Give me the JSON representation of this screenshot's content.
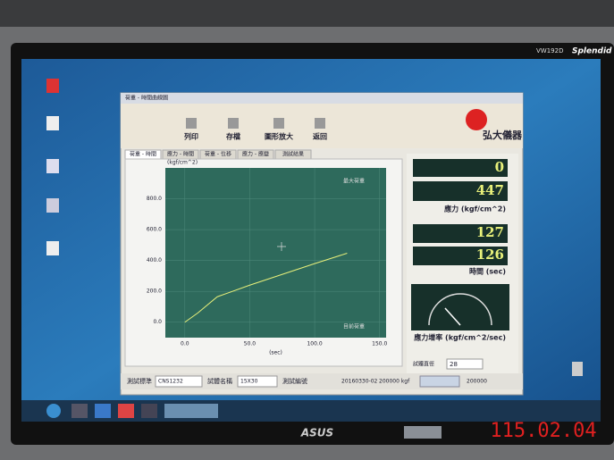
{
  "monitor": {
    "model": "VW192D",
    "series": "Splendid",
    "brand": "ASUS"
  },
  "stamp": "115.02.04",
  "app": {
    "title": "荷重 - 時間曲線圖",
    "toolbar": [
      "列印",
      "存檔",
      "圖形放大",
      "返回"
    ],
    "company": "弘大儀器",
    "tabs": [
      "荷重 - 時間",
      "應力 - 時間",
      "荷重 - 位移",
      "應力 - 應變",
      "測試結果"
    ],
    "panels": {
      "load": "0",
      "stress": "447",
      "stress_label": "應力 (kgf/cm^2)",
      "time_a": "127",
      "time_b": "126",
      "time_label": "時間 (sec)",
      "rate_label": "應力增率 (kgf/cm^2/sec)",
      "size_label": "試體直徑",
      "size_value": "28"
    },
    "footer": {
      "standard_label": "測試標準",
      "standard": "CNS1232",
      "specimen_label": "試體名稱",
      "specimen": "15X30",
      "id_label": "測試編號",
      "id": "20160330-02",
      "capacity": "200000 kgf",
      "limit": "200000"
    }
  },
  "chart_data": {
    "type": "line",
    "ylabel": "(kgf/cm^2)",
    "xlabel": "(sec)",
    "annotations": [
      "最大荷重",
      "目前荷重"
    ],
    "x": [
      0,
      10,
      25,
      50,
      100,
      125
    ],
    "series": [
      {
        "name": "應力",
        "color": "#e8f07a",
        "values": [
          0,
          60,
          165,
          240,
          380,
          447
        ]
      }
    ],
    "xlim": [
      -15,
      155
    ],
    "ylim": [
      -100,
      1000
    ],
    "xticks": [
      {
        "value": 0,
        "label": "0.0"
      },
      {
        "value": 50,
        "label": "50.0"
      },
      {
        "value": 100,
        "label": "100.0"
      },
      {
        "value": 150,
        "label": "150.0"
      }
    ],
    "yticks": [
      {
        "value": 0,
        "label": "0.0"
      },
      {
        "value": 200,
        "label": "200.0"
      },
      {
        "value": 400,
        "label": "400.0"
      },
      {
        "value": 600,
        "label": "600.0"
      },
      {
        "value": 800,
        "label": "800.0"
      }
    ],
    "grid": true
  }
}
